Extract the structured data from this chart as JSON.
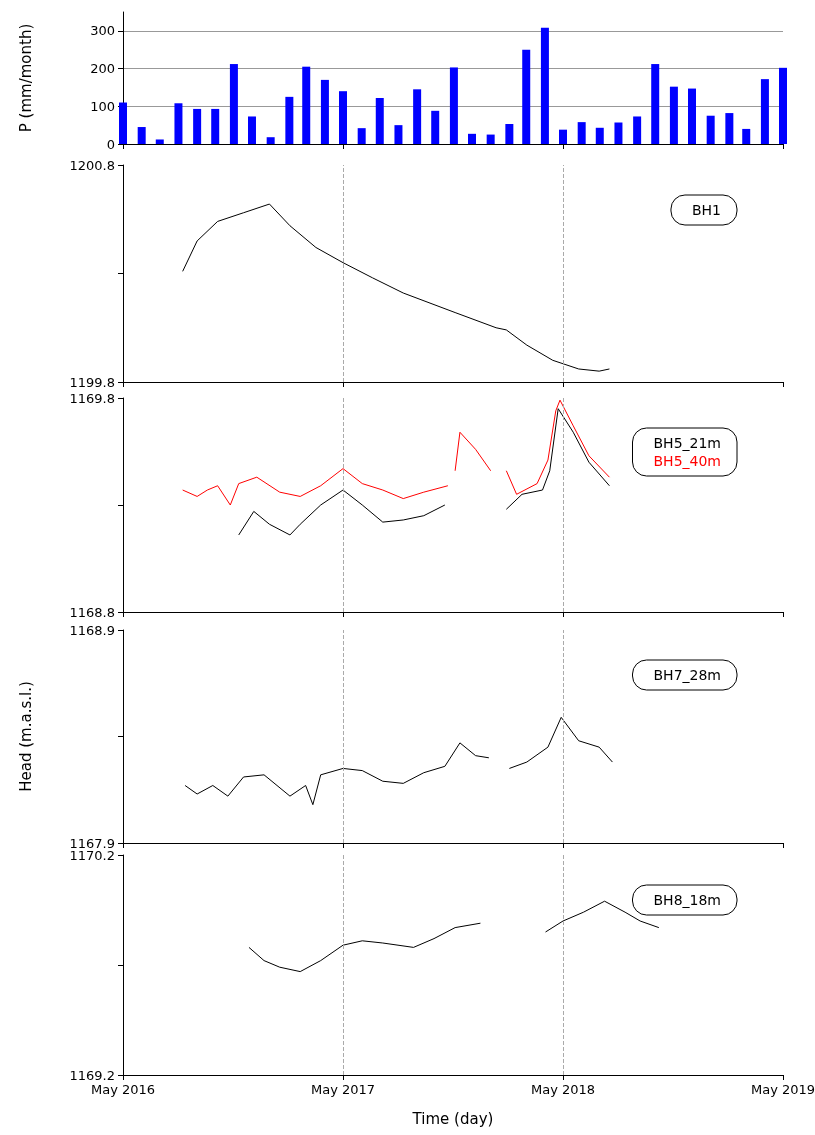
{
  "chart_data": [
    {
      "type": "bar",
      "ylabel": "P (mm/month)",
      "x": [
        "2016-05",
        "2016-06",
        "2016-07",
        "2016-08",
        "2016-09",
        "2016-10",
        "2016-11",
        "2016-12",
        "2017-01",
        "2017-02",
        "2017-03",
        "2017-04",
        "2017-05",
        "2017-06",
        "2017-07",
        "2017-08",
        "2017-09",
        "2017-10",
        "2017-11",
        "2017-12",
        "2018-01",
        "2018-02",
        "2018-03",
        "2018-04",
        "2018-05",
        "2018-06",
        "2018-07",
        "2018-08",
        "2018-09",
        "2018-10",
        "2018-11",
        "2018-12",
        "2019-01",
        "2019-02",
        "2019-03",
        "2019-04",
        "2019-05"
      ],
      "values": [
        110,
        45,
        12,
        108,
        93,
        93,
        212,
        73,
        18,
        125,
        205,
        170,
        140,
        42,
        122,
        50,
        145,
        88,
        203,
        27,
        25,
        53,
        250,
        308,
        38,
        58,
        43,
        57,
        73,
        212,
        152,
        147,
        75,
        82,
        40,
        172,
        202
      ],
      "color": "#0000ff",
      "xlim": [
        "2016-05-01",
        "2019-05-01"
      ],
      "xticks": [
        {
          "value": "2016-05-01",
          "label": null
        },
        {
          "value": "2017-05-01",
          "label": null
        },
        {
          "value": "2018-05-01",
          "label": null
        },
        {
          "value": "2019-05-01",
          "label": null
        }
      ],
      "ylim": [
        0,
        350
      ],
      "yticks": [
        0,
        100,
        200,
        300
      ],
      "grid": "y",
      "tick_labels": "y"
    },
    {
      "type": "line",
      "xlim": [
        "2016-05-01",
        "2019-05-01"
      ],
      "xticks": [
        {
          "value": "2016-05-01",
          "label": null
        },
        {
          "value": "2017-05-01",
          "label": null
        },
        {
          "value": "2018-05-01",
          "label": null
        },
        {
          "value": "2019-05-01",
          "label": null
        }
      ],
      "ylim": [
        1199.8,
        1200.8
      ],
      "yticks": [
        1199.8,
        {
          "value": 1200.3,
          "label": null
        },
        1200.8
      ],
      "tick_labels": "y",
      "legend": "top right",
      "marker": "none",
      "line_style": "solid",
      "ref_lines": [
        {
          "axis": "x",
          "value": "2017-05-01",
          "color": "#aaaaaa",
          "line_style": "dashed"
        },
        {
          "axis": "x",
          "value": "2018-05-01",
          "color": "#aaaaaa",
          "line_style": "dashed"
        }
      ],
      "series": [
        {
          "name": "BH1",
          "color": "#000000",
          "x": [
            "2016-08-08",
            "2016-09-01",
            "2016-10-05",
            "2016-11-17",
            "2016-12-30",
            "2017-02-02",
            "2017-03-17",
            "2017-05-01",
            "2017-06-19",
            "2017-08-09",
            "2017-11-03",
            "2018-01-10",
            "2018-01-27",
            "2018-03-02",
            "2018-04-14",
            "2018-05-27",
            "2018-06-30",
            "2018-07-17"
          ],
          "values": [
            1200.31,
            1200.45,
            1200.54,
            1200.58,
            1200.62,
            1200.52,
            1200.42,
            1200.35,
            1200.28,
            1200.21,
            1200.12,
            1200.05,
            1200.04,
            1199.97,
            1199.9,
            1199.86,
            1199.85,
            1199.86
          ]
        }
      ]
    },
    {
      "type": "line",
      "xlim": [
        "2016-05-01",
        "2019-05-01"
      ],
      "xticks": [
        {
          "value": "2016-05-01",
          "label": null
        },
        {
          "value": "2017-05-01",
          "label": null
        },
        {
          "value": "2018-05-01",
          "label": null
        },
        {
          "value": "2019-05-01",
          "label": null
        }
      ],
      "ylim": [
        1168.8,
        1169.8
      ],
      "yticks": [
        1168.8,
        {
          "value": 1169.3,
          "label": null
        },
        1169.8
      ],
      "tick_labels": "y",
      "legend": "top right",
      "marker": "none",
      "line_style": "solid",
      "ref_lines": [
        {
          "axis": "x",
          "value": "2017-05-01",
          "color": "#aaaaaa",
          "line_style": "dashed"
        },
        {
          "axis": "x",
          "value": "2018-05-01",
          "color": "#aaaaaa",
          "line_style": "dashed"
        }
      ],
      "series": [
        {
          "name": "BH5_21m",
          "color": "#000000",
          "x": [
            "2016-11-09",
            "2016-12-04",
            "2016-12-30",
            "2017-02-02",
            "2017-02-19",
            "2017-03-25",
            "2017-05-01",
            "2017-06-02",
            "2017-07-06",
            "2017-08-09",
            "2017-09-12",
            "2017-10-17",
            "2017-12-01",
            "2018-01-27",
            "2018-02-22",
            "2018-03-28",
            "2018-04-09",
            "2018-04-23",
            "2018-05-18",
            "2018-06-13",
            "2018-07-17"
          ],
          "values": [
            1169.16,
            1169.27,
            1169.21,
            1169.16,
            1169.21,
            1169.3,
            1169.37,
            1169.3,
            1169.22,
            1169.23,
            1169.25,
            1169.3,
            null,
            1169.28,
            1169.35,
            1169.37,
            1169.46,
            1169.75,
            1169.64,
            1169.5,
            1169.39
          ]
        },
        {
          "name": "BH5_40m",
          "color": "#ff0000",
          "x": [
            "2016-08-08",
            "2016-09-01",
            "2016-09-18",
            "2016-10-05",
            "2016-10-26",
            "2016-11-09",
            "2016-12-09",
            "2017-01-16",
            "2017-02-19",
            "2017-03-25",
            "2017-05-01",
            "2017-06-02",
            "2017-07-06",
            "2017-08-09",
            "2017-09-12",
            "2017-10-22",
            "2017-10-29",
            "2017-11-03",
            "2017-11-11",
            "2017-12-07",
            "2018-01-01",
            "2018-01-14",
            "2018-01-27",
            "2018-02-13",
            "2018-03-19",
            "2018-04-06",
            "2018-04-19",
            "2018-04-26",
            "2018-05-18",
            "2018-06-13",
            "2018-07-17"
          ],
          "values": [
            1169.37,
            1169.34,
            1169.37,
            1169.39,
            1169.3,
            1169.4,
            1169.43,
            1169.36,
            1169.34,
            1169.39,
            1169.47,
            1169.4,
            1169.37,
            1169.33,
            1169.36,
            1169.39,
            null,
            1169.46,
            1169.64,
            1169.56,
            1169.46,
            null,
            1169.46,
            1169.35,
            1169.4,
            1169.51,
            1169.74,
            1169.79,
            1169.67,
            1169.53,
            1169.43
          ]
        }
      ]
    },
    {
      "type": "line",
      "ylabel": "Head (m.a.s.l.)",
      "xlim": [
        "2016-05-01",
        "2019-05-01"
      ],
      "xticks": [
        {
          "value": "2016-05-01",
          "label": null
        },
        {
          "value": "2017-05-01",
          "label": null
        },
        {
          "value": "2018-05-01",
          "label": null
        },
        {
          "value": "2019-05-01",
          "label": null
        }
      ],
      "ylim": [
        1167.9,
        1168.9
      ],
      "yticks": [
        1167.9,
        {
          "value": 1168.4,
          "label": null
        },
        1168.9
      ],
      "tick_labels": "y",
      "legend": "top right",
      "marker": "none",
      "line_style": "solid",
      "ref_lines": [
        {
          "axis": "x",
          "value": "2017-05-01",
          "color": "#aaaaaa",
          "line_style": "dashed"
        },
        {
          "axis": "x",
          "value": "2018-05-01",
          "color": "#aaaaaa",
          "line_style": "dashed"
        }
      ],
      "series": [
        {
          "name": "BH7_28m",
          "color": "#000000",
          "x": [
            "2016-08-12",
            "2016-09-01",
            "2016-09-27",
            "2016-10-22",
            "2016-11-17",
            "2016-12-21",
            "2017-02-02",
            "2017-02-28",
            "2017-03-12",
            "2017-03-25",
            "2017-05-01",
            "2017-06-02",
            "2017-07-06",
            "2017-08-09",
            "2017-09-12",
            "2017-10-17",
            "2017-11-11",
            "2017-12-07",
            "2017-12-29",
            "2018-01-15",
            "2018-02-01",
            "2018-03-02",
            "2018-04-06",
            "2018-04-28",
            "2018-05-27",
            "2018-06-30",
            "2018-07-22"
          ],
          "values": [
            1168.17,
            1168.13,
            1168.17,
            1168.12,
            1168.21,
            1168.22,
            1168.12,
            1168.17,
            1168.08,
            1168.22,
            1168.25,
            1168.24,
            1168.19,
            1168.18,
            1168.23,
            1168.26,
            1168.37,
            1168.31,
            1168.3,
            null,
            1168.25,
            1168.28,
            1168.35,
            1168.49,
            1168.38,
            1168.35,
            1168.28
          ]
        }
      ]
    },
    {
      "type": "line",
      "xlabel": "Time (day)",
      "xlim": [
        "2016-05-01",
        "2019-05-01"
      ],
      "xticks": [
        {
          "value": "2016-05-01",
          "label": "May 2016"
        },
        {
          "value": "2017-05-01",
          "label": "May 2017"
        },
        {
          "value": "2018-05-01",
          "label": "May 2018"
        },
        {
          "value": "2019-05-01",
          "label": "May 2019"
        }
      ],
      "ylim": [
        1169.2,
        1170.2
      ],
      "yticks": [
        1169.2,
        {
          "value": 1169.7,
          "label": null
        },
        1170.2
      ],
      "legend": "top right",
      "marker": "none",
      "line_style": "solid",
      "ref_lines": [
        {
          "axis": "x",
          "value": "2017-05-01",
          "color": "#aaaaaa",
          "line_style": "dashed"
        },
        {
          "axis": "x",
          "value": "2018-05-01",
          "color": "#aaaaaa",
          "line_style": "dashed"
        }
      ],
      "series": [
        {
          "name": "BH8_18m",
          "color": "#000000",
          "x": [
            "2016-11-26",
            "2016-12-21",
            "2017-01-16",
            "2017-02-19",
            "2017-03-25",
            "2017-05-01",
            "2017-06-02",
            "2017-07-06",
            "2017-08-26",
            "2017-09-29",
            "2017-11-03",
            "2017-12-15",
            "2018-02-20",
            "2018-04-02",
            "2018-05-01",
            "2018-06-04",
            "2018-07-09",
            "2018-08-12",
            "2018-09-06",
            "2018-10-07"
          ],
          "values": [
            1169.78,
            1169.72,
            1169.69,
            1169.67,
            1169.72,
            1169.79,
            1169.81,
            1169.8,
            1169.78,
            1169.82,
            1169.87,
            1169.89,
            null,
            1169.85,
            1169.9,
            1169.94,
            1169.99,
            1169.94,
            1169.9,
            1169.87
          ]
        }
      ]
    }
  ]
}
